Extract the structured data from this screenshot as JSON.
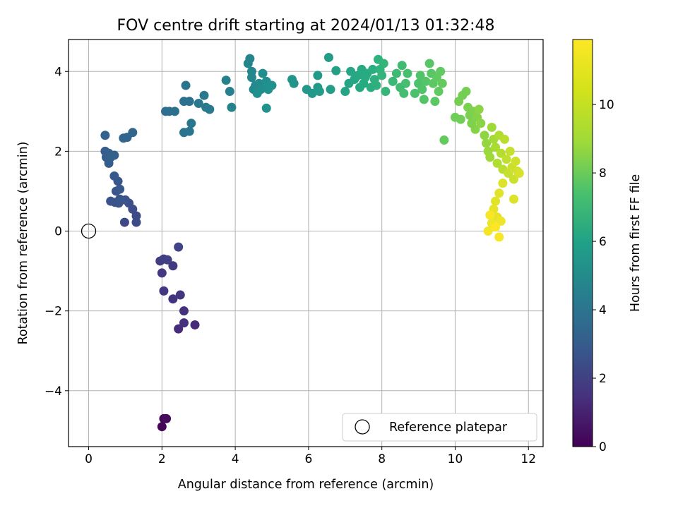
{
  "chart_data": {
    "type": "scatter",
    "title": "FOV centre drift starting at 2024/01/13 01:32:48",
    "xlabel": "Angular distance from reference (arcmin)",
    "ylabel": "Rotation from reference (arcmin)",
    "xlim": [
      -0.55,
      12.4
    ],
    "ylim": [
      -5.4,
      4.8
    ],
    "xticks": [
      0,
      2,
      4,
      6,
      8,
      10,
      12
    ],
    "yticks": [
      -4,
      -2,
      0,
      2,
      4
    ],
    "grid": true,
    "legend": {
      "position": "lower-right",
      "entries": [
        "Reference platepar"
      ]
    },
    "reference_point": {
      "x": 0,
      "y": 0,
      "label": "Reference platepar"
    },
    "colorbar": {
      "label": "Hours from first FF file",
      "min": 0,
      "max": 11.9,
      "ticks": [
        0,
        2,
        4,
        6,
        8,
        10
      ],
      "colormap": "viridis"
    },
    "series": [
      {
        "points": [
          [
            2.0,
            -4.9,
            0.1
          ],
          [
            2.05,
            -4.7,
            0.2
          ],
          [
            2.12,
            -4.7,
            0.3
          ],
          [
            2.45,
            -2.45,
            1.5
          ],
          [
            2.6,
            -2.3,
            1.6
          ],
          [
            2.9,
            -2.35,
            1.5
          ],
          [
            2.6,
            -2.0,
            1.7
          ],
          [
            2.3,
            -1.7,
            1.8
          ],
          [
            2.05,
            -1.5,
            1.9
          ],
          [
            2.5,
            -1.6,
            1.9
          ],
          [
            2.0,
            -1.05,
            2.0
          ],
          [
            2.3,
            -0.87,
            2.1
          ],
          [
            1.95,
            -0.75,
            2.2
          ],
          [
            2.05,
            -0.7,
            2.2
          ],
          [
            2.15,
            -0.72,
            2.3
          ],
          [
            2.45,
            -0.4,
            2.4
          ],
          [
            0.98,
            0.22,
            2.6
          ],
          [
            1.3,
            0.22,
            2.7
          ],
          [
            1.3,
            0.38,
            2.7
          ],
          [
            1.2,
            0.55,
            2.8
          ],
          [
            1.1,
            0.7,
            2.9
          ],
          [
            1.0,
            0.78,
            3.0
          ],
          [
            0.82,
            0.7,
            3.0
          ],
          [
            0.72,
            0.72,
            3.1
          ],
          [
            0.6,
            0.75,
            3.1
          ],
          [
            0.85,
            0.8,
            3.2
          ],
          [
            0.75,
            1.0,
            3.2
          ],
          [
            0.85,
            1.05,
            3.3
          ],
          [
            0.8,
            1.25,
            3.3
          ],
          [
            0.7,
            1.38,
            3.4
          ],
          [
            0.55,
            1.7,
            3.5
          ],
          [
            0.48,
            1.85,
            3.5
          ],
          [
            0.45,
            2.0,
            3.6
          ],
          [
            0.55,
            1.95,
            3.6
          ],
          [
            0.6,
            1.85,
            3.7
          ],
          [
            0.7,
            1.9,
            3.7
          ],
          [
            0.45,
            2.4,
            3.8
          ],
          [
            0.95,
            2.33,
            3.9
          ],
          [
            1.05,
            2.35,
            3.9
          ],
          [
            1.2,
            2.47,
            4.0
          ],
          [
            2.1,
            3.0,
            4.3
          ],
          [
            2.2,
            3.0,
            4.3
          ],
          [
            2.35,
            3.0,
            4.4
          ],
          [
            2.6,
            3.25,
            4.5
          ],
          [
            2.75,
            3.25,
            4.5
          ],
          [
            2.65,
            3.65,
            4.6
          ],
          [
            2.6,
            2.47,
            4.6
          ],
          [
            2.75,
            2.5,
            4.7
          ],
          [
            2.8,
            2.7,
            4.7
          ],
          [
            3.0,
            3.2,
            4.8
          ],
          [
            3.15,
            3.4,
            4.8
          ],
          [
            3.2,
            3.1,
            4.9
          ],
          [
            3.3,
            3.05,
            4.9
          ],
          [
            3.75,
            3.78,
            5.2
          ],
          [
            3.85,
            3.5,
            5.2
          ],
          [
            3.9,
            3.1,
            5.3
          ],
          [
            4.35,
            4.2,
            5.4
          ],
          [
            4.4,
            4.32,
            5.4
          ],
          [
            4.45,
            4.0,
            5.5
          ],
          [
            4.45,
            3.85,
            5.5
          ],
          [
            4.5,
            3.55,
            5.6
          ],
          [
            4.55,
            3.65,
            5.6
          ],
          [
            4.6,
            3.5,
            5.7
          ],
          [
            4.65,
            3.7,
            5.7
          ],
          [
            4.7,
            3.55,
            5.8
          ],
          [
            4.75,
            3.95,
            5.8
          ],
          [
            4.8,
            3.6,
            5.8
          ],
          [
            4.6,
            3.45,
            5.9
          ],
          [
            4.85,
            3.75,
            5.9
          ],
          [
            4.9,
            3.55,
            6.0
          ],
          [
            5.0,
            3.65,
            6.0
          ],
          [
            4.85,
            3.08,
            6.0
          ],
          [
            5.55,
            3.8,
            6.2
          ],
          [
            5.6,
            3.7,
            6.2
          ],
          [
            5.95,
            3.55,
            6.3
          ],
          [
            6.1,
            3.45,
            6.3
          ],
          [
            6.25,
            3.6,
            6.4
          ],
          [
            6.25,
            3.9,
            6.4
          ],
          [
            6.3,
            3.5,
            6.5
          ],
          [
            6.55,
            4.35,
            6.6
          ],
          [
            6.6,
            3.55,
            6.6
          ],
          [
            6.75,
            4.02,
            6.7
          ],
          [
            7.0,
            3.5,
            7.0
          ],
          [
            7.1,
            3.7,
            7.0
          ],
          [
            7.15,
            4.0,
            7.1
          ],
          [
            7.25,
            3.8,
            7.1
          ],
          [
            7.35,
            3.9,
            7.2
          ],
          [
            7.4,
            3.6,
            7.2
          ],
          [
            7.45,
            4.05,
            7.3
          ],
          [
            7.5,
            3.7,
            7.3
          ],
          [
            7.55,
            3.85,
            7.4
          ],
          [
            7.6,
            3.95,
            7.4
          ],
          [
            7.7,
            3.6,
            7.5
          ],
          [
            7.75,
            4.05,
            7.5
          ],
          [
            7.8,
            3.8,
            7.6
          ],
          [
            7.85,
            3.65,
            7.6
          ],
          [
            7.9,
            4.3,
            7.7
          ],
          [
            7.95,
            4.05,
            7.7
          ],
          [
            8.0,
            3.9,
            7.8
          ],
          [
            8.05,
            4.2,
            7.8
          ],
          [
            8.1,
            3.5,
            7.9
          ],
          [
            8.3,
            3.75,
            8.0
          ],
          [
            8.4,
            3.95,
            8.1
          ],
          [
            8.5,
            3.6,
            8.2
          ],
          [
            8.55,
            4.15,
            8.2
          ],
          [
            8.6,
            3.45,
            8.3
          ],
          [
            8.65,
            3.7,
            8.3
          ],
          [
            8.7,
            3.95,
            8.4
          ],
          [
            8.9,
            3.45,
            8.5
          ],
          [
            9.0,
            3.7,
            8.5
          ],
          [
            9.05,
            3.9,
            8.6
          ],
          [
            9.1,
            3.55,
            8.6
          ],
          [
            9.15,
            3.3,
            8.7
          ],
          [
            9.2,
            3.75,
            8.7
          ],
          [
            9.3,
            4.2,
            8.8
          ],
          [
            9.35,
            3.95,
            8.8
          ],
          [
            9.4,
            3.7,
            8.9
          ],
          [
            9.45,
            3.25,
            8.9
          ],
          [
            9.5,
            3.85,
            9.0
          ],
          [
            9.55,
            3.5,
            9.0
          ],
          [
            9.6,
            4.0,
            9.0
          ],
          [
            9.65,
            3.7,
            9.1
          ],
          [
            9.7,
            2.28,
            9.1
          ],
          [
            10.0,
            2.85,
            9.3
          ],
          [
            10.15,
            2.8,
            9.3
          ],
          [
            10.1,
            3.25,
            9.4
          ],
          [
            10.2,
            3.4,
            9.4
          ],
          [
            10.3,
            3.5,
            9.4
          ],
          [
            10.35,
            3.1,
            9.5
          ],
          [
            10.4,
            2.9,
            9.5
          ],
          [
            10.45,
            2.7,
            9.6
          ],
          [
            10.5,
            3.0,
            9.6
          ],
          [
            10.55,
            2.55,
            9.7
          ],
          [
            10.6,
            2.85,
            9.7
          ],
          [
            10.65,
            3.05,
            9.8
          ],
          [
            10.7,
            2.7,
            9.8
          ],
          [
            10.8,
            2.4,
            9.9
          ],
          [
            10.85,
            2.2,
            10.0
          ],
          [
            10.9,
            2.0,
            10.1
          ],
          [
            10.95,
            1.85,
            10.2
          ],
          [
            11.0,
            2.6,
            10.2
          ],
          [
            11.05,
            2.3,
            10.3
          ],
          [
            11.1,
            2.1,
            10.4
          ],
          [
            11.15,
            1.7,
            10.5
          ],
          [
            11.2,
            2.4,
            10.5
          ],
          [
            11.25,
            1.95,
            10.6
          ],
          [
            11.3,
            1.55,
            10.7
          ],
          [
            11.35,
            2.3,
            10.7
          ],
          [
            11.4,
            1.8,
            10.8
          ],
          [
            11.45,
            1.45,
            10.9
          ],
          [
            11.5,
            2.0,
            10.9
          ],
          [
            11.55,
            1.6,
            11.0
          ],
          [
            11.6,
            1.3,
            11.0
          ],
          [
            11.65,
            1.75,
            11.1
          ],
          [
            11.7,
            1.5,
            11.1
          ],
          [
            11.75,
            1.45,
            11.2
          ],
          [
            11.6,
            0.8,
            11.3
          ],
          [
            11.3,
            1.2,
            11.3
          ],
          [
            11.2,
            0.95,
            11.4
          ],
          [
            11.1,
            0.75,
            11.4
          ],
          [
            11.05,
            0.55,
            11.5
          ],
          [
            11.15,
            0.35,
            11.5
          ],
          [
            11.0,
            0.2,
            11.6
          ],
          [
            11.25,
            0.25,
            11.6
          ],
          [
            10.9,
            0.0,
            11.7
          ],
          [
            11.2,
            -0.15,
            11.8
          ],
          [
            10.95,
            0.4,
            11.8
          ],
          [
            11.1,
            0.1,
            11.9
          ]
        ]
      }
    ]
  }
}
